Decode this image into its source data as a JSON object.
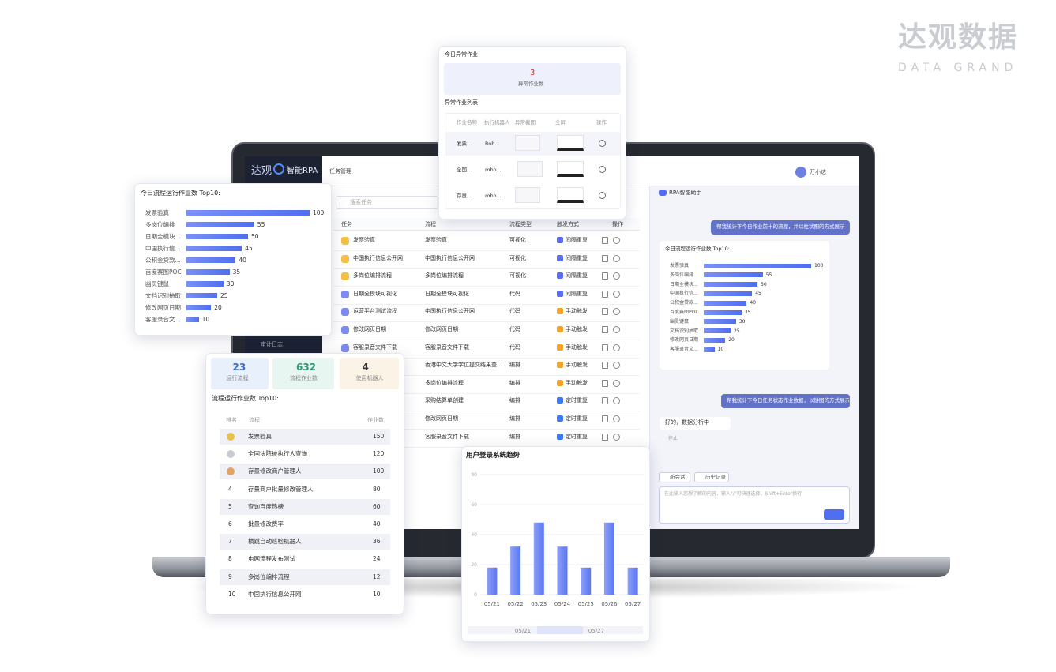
{
  "brand": {
    "name": "达观数据",
    "sub": "DATA GRAND"
  },
  "app": {
    "logo": "达观",
    "product": "智能RPA",
    "page_title": "任务管理",
    "user": "万小达",
    "sidebar_item": "审计日志",
    "search_placeholder": "搜索任务",
    "columns": [
      "任务",
      "流程",
      "流程类型",
      "触发方式",
      "操作"
    ],
    "rows": [
      {
        "task": "发票验真",
        "flow": "发票验真",
        "type": "可视化",
        "trigger": "间隔重复"
      },
      {
        "task": "中国执行信息公开网",
        "flow": "中国执行信息公开网",
        "type": "可视化",
        "trigger": "间隔重复"
      },
      {
        "task": "多岗位编排流程",
        "flow": "多岗位编排流程",
        "type": "可视化",
        "trigger": "间隔重复"
      },
      {
        "task": "日期全模块可视化",
        "flow": "日期全模块可视化",
        "type": "代码",
        "trigger": "间隔重复"
      },
      {
        "task": "运营平台测试流程",
        "flow": "中国执行信息公开网",
        "type": "代码",
        "trigger": "手动触发"
      },
      {
        "task": "修改网页日期",
        "flow": "修改网页日期",
        "type": "代码",
        "trigger": "手动触发"
      },
      {
        "task": "客服录音文件下载",
        "flow": "客服录音文件下载",
        "type": "代码",
        "trigger": "手动触发"
      },
      {
        "task": null,
        "flow": "香港中文大学学位提交结果查...",
        "type": "编排",
        "trigger": "手动触发"
      },
      {
        "task": null,
        "flow": "多岗位编排流程",
        "type": "编排",
        "trigger": "手动触发"
      },
      {
        "task": null,
        "flow": "采购结算单创建",
        "type": "编排",
        "trigger": "定时重复"
      },
      {
        "task": null,
        "flow": "修改网页日期",
        "type": "编排",
        "trigger": "定时重复"
      },
      {
        "task": null,
        "flow": "客服录音文件下载",
        "type": "编排",
        "trigger": "定时重复"
      }
    ]
  },
  "assistant": {
    "title": "RPA智能助手",
    "messages": [
      "帮我统计下今日作业前十的流程，并以柱状图的方式展示",
      "帮我统计下今日任务状态作业数据，以饼图的方式展示"
    ],
    "reply": "好的，数据分析中",
    "stop": "停止",
    "new_chat": "新会话",
    "history": "历史记录",
    "input_placeholder": "在此输入您想了解的内容，输入\"/\"可快速选择，Shift+Enter换行"
  },
  "top10_chart": {
    "type": "hbar",
    "title": "今日流程运行作业数 Top10:",
    "categories": [
      "发票验真",
      "多岗位编排",
      "日期全模块...",
      "中国执行信...",
      "公积金贷款...",
      "百度赛图POC",
      "幽灵键鼠",
      "文档识别抽取",
      "修改网页日期",
      "客服录音文..."
    ],
    "values": [
      100,
      55,
      50,
      45,
      40,
      35,
      30,
      25,
      20,
      10
    ],
    "color": "#4f6ef0"
  },
  "assistant_chart": {
    "type": "hbar",
    "title": "今日流程运行作业数 Top10:",
    "categories": [
      "发票验真",
      "多岗位编排",
      "日期全模块...",
      "中国执行信...",
      "公积金贷款...",
      "百度赛图POC",
      "幽灵键鼠",
      "文档识别抽取",
      "修改网页日期",
      "客服录音文..."
    ],
    "values": [
      100,
      55,
      50,
      45,
      40,
      35,
      30,
      25,
      20,
      10
    ],
    "color": "#4f6ef0"
  },
  "exceptions": {
    "title": "今日异常作业",
    "count": 3,
    "count_label": "异常作业数",
    "list_title": "异常作业列表",
    "columns": [
      "作业名称",
      "执行机器人",
      "异常截图",
      "全屏",
      "操作"
    ],
    "rows": [
      {
        "job": "发票...",
        "robot": "Rob..."
      },
      {
        "job": "全国...",
        "robot": "robo..."
      },
      {
        "job": "存量...",
        "robot": "robo..."
      }
    ]
  },
  "ranking": {
    "stats": [
      {
        "value": 23,
        "label": "运行流程"
      },
      {
        "value": 632,
        "label": "流程作业数"
      },
      {
        "value": 4,
        "label": "使用机器人"
      }
    ],
    "title": "流程运行作业数 Top10:",
    "columns": [
      "排名",
      "流程",
      "作业数"
    ],
    "rows": [
      {
        "rank": null,
        "name": "发票验真",
        "count": 150
      },
      {
        "rank": null,
        "name": "全国法院被执行人查询",
        "count": 120
      },
      {
        "rank": null,
        "name": "存量修改商户管理人",
        "count": 100
      },
      {
        "rank": 4,
        "name": "存量商户批量修改管理人",
        "count": 80
      },
      {
        "rank": 5,
        "name": "查询百度热榜",
        "count": 60
      },
      {
        "rank": 6,
        "name": "批量修改费率",
        "count": 40
      },
      {
        "rank": 7,
        "name": "横跳自动巡检机器人",
        "count": 36
      },
      {
        "rank": 8,
        "name": "电网流程发布测试",
        "count": 24
      },
      {
        "rank": 9,
        "name": "多岗位编排流程",
        "count": 12
      },
      {
        "rank": 10,
        "name": "中国执行信息公开网",
        "count": 10
      }
    ]
  },
  "login_chart": {
    "type": "bar",
    "title": "用户登录系统趋势",
    "categories": [
      "05/21",
      "05/22",
      "05/23",
      "05/24",
      "05/25",
      "05/26",
      "05/27"
    ],
    "values": [
      18,
      32,
      48,
      32,
      18,
      48,
      18
    ],
    "ylim": [
      0,
      80
    ],
    "yticks": [
      0,
      20,
      40,
      60,
      80
    ],
    "color": "#5a76f2"
  }
}
